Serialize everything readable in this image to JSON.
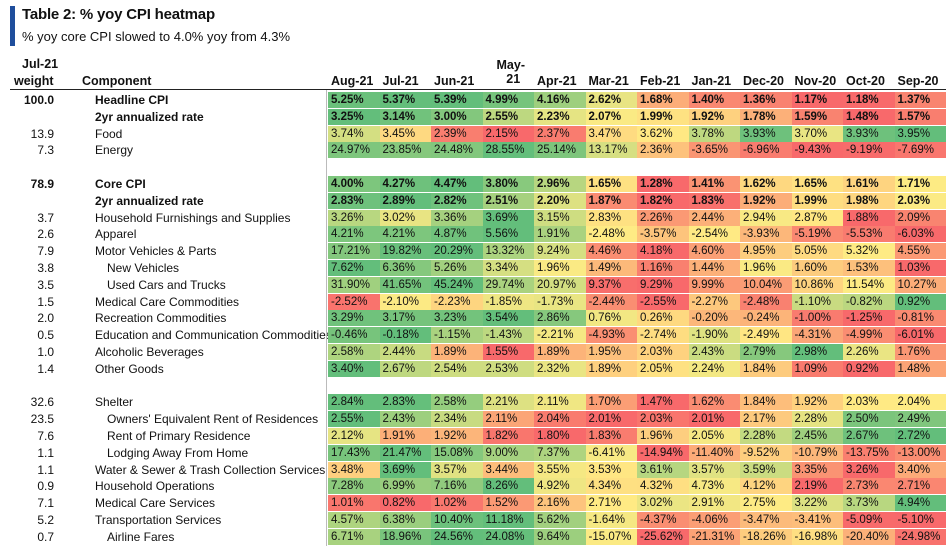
{
  "title": "Table 2: % yoy CPI heatmap",
  "subtitle": "% yoy core CPI slowed to 4.0% yoy from 4.3%",
  "header": {
    "weight_line1": "Jul-21",
    "weight_line2": "weight",
    "component": "Component"
  },
  "chart_data": {
    "type": "heatmap",
    "title": "Table 2: % yoy CPI heatmap",
    "columns": [
      "Aug-21",
      "Jul-21",
      "Jun-21",
      "May-21",
      "Apr-21",
      "Mar-21",
      "Feb-21",
      "Jan-21",
      "Dec-20",
      "Nov-20",
      "Oct-20",
      "Sep-20"
    ],
    "rows": [
      {
        "weight": "100.0",
        "label": "Headline CPI",
        "bold": true,
        "indent": 0,
        "values": [
          "5.25%",
          "5.37%",
          "5.39%",
          "4.99%",
          "4.16%",
          "2.62%",
          "1.68%",
          "1.40%",
          "1.36%",
          "1.17%",
          "1.18%",
          "1.37%"
        ]
      },
      {
        "weight": "",
        "label": "2yr annualized rate",
        "bold": true,
        "indent": 0,
        "values": [
          "3.25%",
          "3.14%",
          "3.00%",
          "2.55%",
          "2.23%",
          "2.07%",
          "1.99%",
          "1.92%",
          "1.78%",
          "1.59%",
          "1.48%",
          "1.57%"
        ]
      },
      {
        "weight": "13.9",
        "label": "Food",
        "bold": false,
        "indent": 0,
        "values": [
          "3.74%",
          "3.45%",
          "2.39%",
          "2.15%",
          "2.37%",
          "3.47%",
          "3.62%",
          "3.78%",
          "3.93%",
          "3.70%",
          "3.93%",
          "3.95%"
        ]
      },
      {
        "weight": "7.3",
        "label": "Energy",
        "bold": false,
        "indent": 0,
        "values": [
          "24.97%",
          "23.85%",
          "24.48%",
          "28.55%",
          "25.14%",
          "13.17%",
          "2.36%",
          "-3.65%",
          "-6.96%",
          "-9.43%",
          "-9.19%",
          "-7.69%"
        ]
      },
      {
        "gap": true
      },
      {
        "weight": "78.9",
        "label": "Core CPI",
        "bold": true,
        "indent": 0,
        "values": [
          "4.00%",
          "4.27%",
          "4.47%",
          "3.80%",
          "2.96%",
          "1.65%",
          "1.28%",
          "1.41%",
          "1.62%",
          "1.65%",
          "1.61%",
          "1.71%"
        ]
      },
      {
        "weight": "",
        "label": "2yr annualized rate",
        "bold": true,
        "indent": 0,
        "values": [
          "2.83%",
          "2.89%",
          "2.82%",
          "2.51%",
          "2.20%",
          "1.87%",
          "1.82%",
          "1.83%",
          "1.92%",
          "1.99%",
          "1.98%",
          "2.03%"
        ]
      },
      {
        "weight": "3.7",
        "label": "Household Furnishings and Supplies",
        "bold": false,
        "indent": 0,
        "values": [
          "3.26%",
          "3.02%",
          "3.36%",
          "3.69%",
          "3.15%",
          "2.83%",
          "2.26%",
          "2.44%",
          "2.94%",
          "2.87%",
          "1.88%",
          "2.09%"
        ]
      },
      {
        "weight": "2.6",
        "label": "Apparel",
        "bold": false,
        "indent": 0,
        "values": [
          "4.21%",
          "4.21%",
          "4.87%",
          "5.56%",
          "1.91%",
          "-2.48%",
          "-3.57%",
          "-2.54%",
          "-3.93%",
          "-5.19%",
          "-5.53%",
          "-6.03%"
        ]
      },
      {
        "weight": "7.9",
        "label": "Motor Vehicles & Parts",
        "bold": false,
        "indent": 0,
        "values": [
          "17.21%",
          "19.82%",
          "20.29%",
          "13.32%",
          "9.24%",
          "4.46%",
          "4.18%",
          "4.60%",
          "4.95%",
          "5.05%",
          "5.32%",
          "4.55%"
        ]
      },
      {
        "weight": "3.8",
        "label": "New Vehicles",
        "bold": false,
        "indent": 1,
        "values": [
          "7.62%",
          "6.36%",
          "5.26%",
          "3.34%",
          "1.96%",
          "1.49%",
          "1.16%",
          "1.44%",
          "1.96%",
          "1.60%",
          "1.53%",
          "1.03%"
        ]
      },
      {
        "weight": "3.5",
        "label": "Used Cars and Trucks",
        "bold": false,
        "indent": 1,
        "values": [
          "31.90%",
          "41.65%",
          "45.24%",
          "29.74%",
          "20.97%",
          "9.37%",
          "9.29%",
          "9.99%",
          "10.04%",
          "10.86%",
          "11.54%",
          "10.27%"
        ]
      },
      {
        "weight": "1.5",
        "label": "Medical Care Commodities",
        "bold": false,
        "indent": 0,
        "values": [
          "-2.52%",
          "-2.10%",
          "-2.23%",
          "-1.85%",
          "-1.73%",
          "-2.44%",
          "-2.55%",
          "-2.27%",
          "-2.48%",
          "-1.10%",
          "-0.82%",
          "0.92%"
        ]
      },
      {
        "weight": "2.0",
        "label": "Recreation Commodities",
        "bold": false,
        "indent": 0,
        "values": [
          "3.29%",
          "3.17%",
          "3.23%",
          "3.54%",
          "2.86%",
          "0.76%",
          "0.26%",
          "-0.20%",
          "-0.24%",
          "-1.00%",
          "-1.25%",
          "-0.81%"
        ]
      },
      {
        "weight": "0.5",
        "label": "Education and Communication Commodities",
        "bold": false,
        "indent": 0,
        "values": [
          "-0.46%",
          "-0.18%",
          "-1.15%",
          "-1.43%",
          "-2.21%",
          "-4.93%",
          "-2.74%",
          "-1.90%",
          "-2.49%",
          "-4.31%",
          "-4.99%",
          "-6.01%"
        ]
      },
      {
        "weight": "1.0",
        "label": "Alcoholic Beverages",
        "bold": false,
        "indent": 0,
        "values": [
          "2.58%",
          "2.44%",
          "1.89%",
          "1.55%",
          "1.89%",
          "1.95%",
          "2.03%",
          "2.43%",
          "2.79%",
          "2.98%",
          "2.26%",
          "1.76%"
        ]
      },
      {
        "weight": "1.4",
        "label": "Other Goods",
        "bold": false,
        "indent": 0,
        "values": [
          "3.40%",
          "2.67%",
          "2.54%",
          "2.53%",
          "2.32%",
          "1.89%",
          "2.05%",
          "2.24%",
          "1.84%",
          "1.09%",
          "0.92%",
          "1.48%"
        ]
      },
      {
        "gap": true
      },
      {
        "weight": "32.6",
        "label": "Shelter",
        "bold": false,
        "indent": 0,
        "values": [
          "2.84%",
          "2.83%",
          "2.58%",
          "2.21%",
          "2.11%",
          "1.70%",
          "1.47%",
          "1.62%",
          "1.84%",
          "1.92%",
          "2.03%",
          "2.04%"
        ]
      },
      {
        "weight": "23.5",
        "label": "Owners' Equivalent Rent of Residences",
        "bold": false,
        "indent": 1,
        "values": [
          "2.55%",
          "2.43%",
          "2.34%",
          "2.11%",
          "2.04%",
          "2.01%",
          "2.03%",
          "2.01%",
          "2.17%",
          "2.28%",
          "2.50%",
          "2.49%"
        ]
      },
      {
        "weight": "7.6",
        "label": "Rent of Primary Residence",
        "bold": false,
        "indent": 1,
        "values": [
          "2.12%",
          "1.91%",
          "1.92%",
          "1.82%",
          "1.80%",
          "1.83%",
          "1.96%",
          "2.05%",
          "2.28%",
          "2.45%",
          "2.67%",
          "2.72%"
        ]
      },
      {
        "weight": "1.1",
        "label": "Lodging Away From Home",
        "bold": false,
        "indent": 1,
        "values": [
          "17.43%",
          "21.47%",
          "15.08%",
          "9.00%",
          "7.37%",
          "-6.41%",
          "-14.94%",
          "-11.40%",
          "-9.52%",
          "-10.79%",
          "-13.75%",
          "-13.00%"
        ]
      },
      {
        "weight": "1.1",
        "label": "Water & Sewer & Trash Collection Services",
        "bold": false,
        "indent": 0,
        "values": [
          "3.48%",
          "3.69%",
          "3.57%",
          "3.44%",
          "3.55%",
          "3.53%",
          "3.61%",
          "3.57%",
          "3.59%",
          "3.35%",
          "3.26%",
          "3.40%"
        ]
      },
      {
        "weight": "0.9",
        "label": "Household Operations",
        "bold": false,
        "indent": 0,
        "values": [
          "7.28%",
          "6.99%",
          "7.16%",
          "8.26%",
          "4.92%",
          "4.34%",
          "4.32%",
          "4.73%",
          "4.12%",
          "2.19%",
          "2.73%",
          "2.71%"
        ]
      },
      {
        "weight": "7.1",
        "label": "Medical Care Services",
        "bold": false,
        "indent": 0,
        "values": [
          "1.01%",
          "0.82%",
          "1.02%",
          "1.52%",
          "2.16%",
          "2.71%",
          "3.02%",
          "2.91%",
          "2.75%",
          "3.22%",
          "3.73%",
          "4.94%"
        ]
      },
      {
        "weight": "5.2",
        "label": "Transportation Services",
        "bold": false,
        "indent": 0,
        "values": [
          "4.57%",
          "6.38%",
          "10.40%",
          "11.18%",
          "5.62%",
          "-1.64%",
          "-4.37%",
          "-4.06%",
          "-3.47%",
          "-3.41%",
          "-5.09%",
          "-5.10%"
        ]
      },
      {
        "weight": "0.7",
        "label": "Airline Fares",
        "bold": false,
        "indent": 1,
        "values": [
          "6.71%",
          "18.96%",
          "24.56%",
          "24.08%",
          "9.64%",
          "-15.07%",
          "-25.62%",
          "-21.31%",
          "-18.26%",
          "-16.98%",
          "-20.40%",
          "-24.98%"
        ]
      }
    ]
  },
  "colors": {
    "high": "#63be7b",
    "mid": "#ffeb84",
    "low": "#f8696b",
    "title_bar": "#1f4e9c"
  }
}
